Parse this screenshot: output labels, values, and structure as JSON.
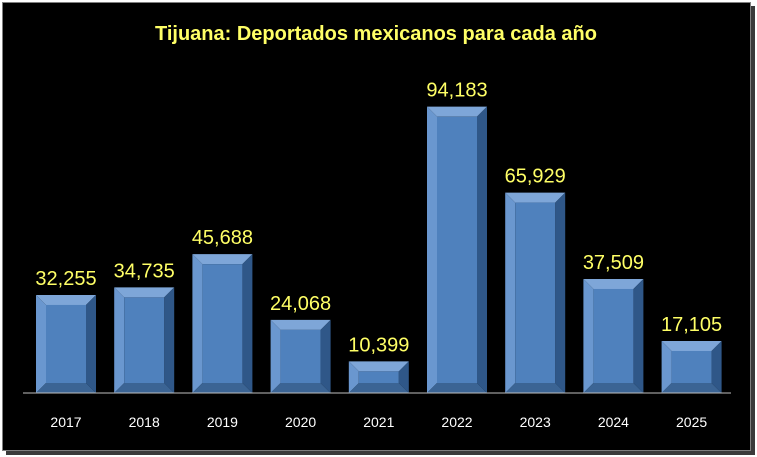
{
  "chart_data": {
    "type": "bar",
    "title": "Tijuana: Deportados mexicanos para cada año",
    "categories": [
      "2017",
      "2018",
      "2019",
      "2020",
      "2021",
      "2022",
      "2023",
      "2024",
      "2025"
    ],
    "values": [
      32255,
      34735,
      45688,
      24068,
      10399,
      94183,
      65929,
      37509,
      17105
    ],
    "value_labels": [
      "32,255",
      "34,735",
      "45,688",
      "24,068",
      "10,399",
      "94,183",
      "65,929",
      "37,509",
      "17,105"
    ],
    "xlabel": "",
    "ylabel": "",
    "ylim": [
      0,
      100000
    ],
    "grid": false,
    "legend": "none"
  },
  "colors": {
    "background": "#000000",
    "bar_face": "#4f81bd",
    "bar_top": "#7ea6d8",
    "bar_left": "#6a97cf",
    "bar_right": "#2f5788",
    "bar_bottom": "#3b6494",
    "title": "#ffff66",
    "value_label": "#ffff66",
    "category_label": "#ffffff",
    "axis": "#bfbfbf"
  }
}
